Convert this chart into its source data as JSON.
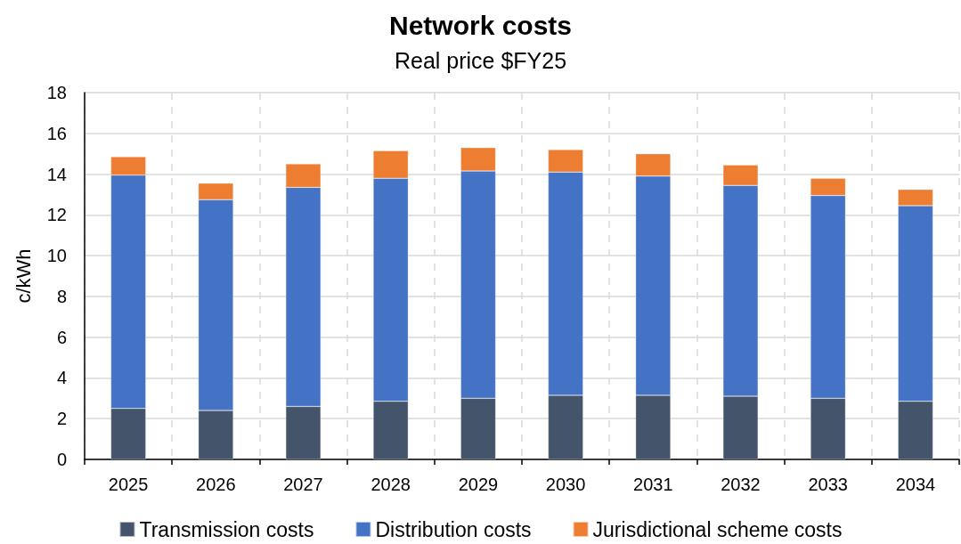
{
  "chart_data": {
    "type": "bar",
    "title": "Network costs",
    "subtitle": "Real price $FY25",
    "ylabel": "c/kWh",
    "categories": [
      "2025",
      "2026",
      "2027",
      "2028",
      "2029",
      "2030",
      "2031",
      "2032",
      "2033",
      "2034"
    ],
    "series": [
      {
        "name": "Transmission costs",
        "color": "#44546a",
        "values": [
          2.5,
          2.4,
          2.6,
          2.85,
          3.0,
          3.15,
          3.15,
          3.1,
          3.0,
          2.85
        ]
      },
      {
        "name": "Distribution costs",
        "color": "#4472c4",
        "values": [
          11.45,
          10.35,
          10.75,
          10.95,
          11.15,
          10.95,
          10.75,
          10.35,
          9.95,
          9.6
        ]
      },
      {
        "name": "Jurisdictional scheme costs",
        "color": "#ed7d31",
        "values": [
          0.9,
          0.8,
          1.15,
          1.35,
          1.15,
          1.1,
          1.1,
          1.0,
          0.85,
          0.8
        ]
      }
    ],
    "stacked": true,
    "ylim": [
      0,
      18
    ],
    "yticks": [
      0,
      2,
      4,
      6,
      8,
      10,
      12,
      14,
      16,
      18
    ],
    "grid": true,
    "legend": "bottom"
  }
}
